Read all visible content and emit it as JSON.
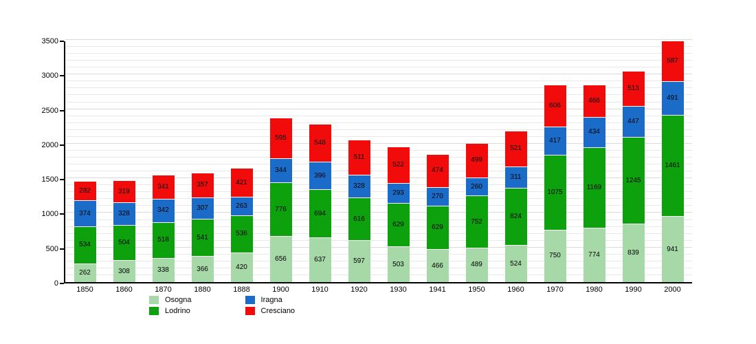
{
  "chart_data": {
    "type": "bar",
    "stacked": true,
    "title": "",
    "xlabel": "",
    "ylabel": "",
    "categories": [
      "1850",
      "1860",
      "1870",
      "1880",
      "1888",
      "1900",
      "1910",
      "1920",
      "1930",
      "1941",
      "1950",
      "1960",
      "1970",
      "1980",
      "1990",
      "2000"
    ],
    "series": [
      {
        "name": "Osogna",
        "color": "#a7d8a7",
        "values": [
          262,
          308,
          338,
          366,
          420,
          656,
          637,
          597,
          503,
          466,
          489,
          524,
          750,
          774,
          839,
          941
        ]
      },
      {
        "name": "Lodrino",
        "color": "#0da10d",
        "values": [
          534,
          504,
          518,
          541,
          536,
          776,
          694,
          616,
          629,
          629,
          752,
          824,
          1075,
          1169,
          1245,
          1461
        ]
      },
      {
        "name": "Iragna",
        "color": "#1a6cc8",
        "values": [
          374,
          328,
          342,
          307,
          263,
          344,
          396,
          328,
          293,
          270,
          260,
          311,
          417,
          434,
          447,
          491
        ]
      },
      {
        "name": "Cresciano",
        "color": "#f20b0b",
        "values": [
          282,
          319,
          341,
          357,
          421,
          595,
          548,
          511,
          522,
          474,
          499,
          521,
          606,
          468,
          513,
          587
        ]
      }
    ],
    "ylim": [
      0,
      3500
    ],
    "y_ticks": [
      0,
      500,
      1000,
      1500,
      2000,
      2500,
      3000,
      3500
    ],
    "grid": "horizontal, minor every 100, major every 500",
    "legend_position": "bottom",
    "legend_columns": [
      [
        "Osogna",
        "Lodrino"
      ],
      [
        "Iragna",
        "Cresciano"
      ]
    ]
  }
}
